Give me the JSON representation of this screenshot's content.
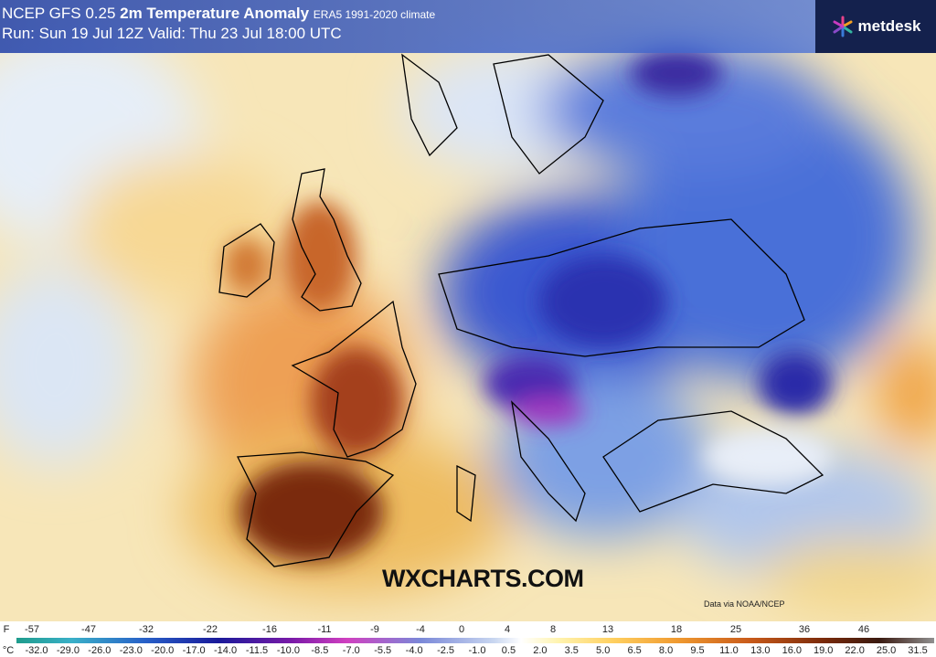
{
  "header": {
    "model": "NCEP GFS 0.25",
    "title": "2m Temperature Anomaly",
    "climate": "ERA5 1991-2020 climate",
    "run": "Run: Sun 19 Jul 12Z Valid: Thu 23 Jul 18:00 UTC",
    "logo": "metdesk"
  },
  "watermark": "WXCHARTS.COM",
  "credit": "Data via NOAA/NCEP",
  "legend": {
    "unit_f": "F",
    "unit_c": "°C",
    "f_labels": [
      "-57",
      "-47",
      "-32",
      "-22",
      "-16",
      "-11",
      "-9",
      "-4",
      "0",
      "4",
      "8",
      "13",
      "18",
      "25",
      "36",
      "46"
    ],
    "c_labels": [
      "-32.0",
      "-29.0",
      "-26.0",
      "-23.0",
      "-20.0",
      "-17.0",
      "-14.0",
      "-11.5",
      "-10.0",
      "-8.5",
      "-7.0",
      "-5.5",
      "-4.0",
      "-2.5",
      "-1.0",
      "0.5",
      "2.0",
      "3.5",
      "5.0",
      "6.5",
      "8.0",
      "9.5",
      "11.0",
      "13.0",
      "16.0",
      "19.0",
      "22.0",
      "25.0",
      "31.5"
    ]
  }
}
